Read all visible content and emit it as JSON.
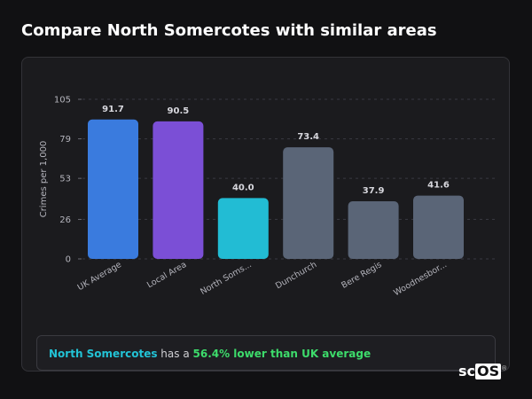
{
  "page": {
    "title": "Compare North Somercotes with similar areas"
  },
  "chart_data": {
    "type": "bar",
    "ylabel": "Crimes per 1,000",
    "xlabel": "",
    "ylim": [
      0,
      105
    ],
    "yticks": [
      0,
      26,
      53,
      79,
      105
    ],
    "grid": true,
    "categories": [
      "UK Average",
      "Local Area",
      "North Soms...",
      "Dunchurch",
      "Bere Regis",
      "Woodnesbor..."
    ],
    "values": [
      91.7,
      90.5,
      40.0,
      73.4,
      37.9,
      41.6
    ],
    "value_labels": [
      "91.7",
      "90.5",
      "40.0",
      "73.4",
      "37.9",
      "41.6"
    ],
    "bar_colors": [
      "#3a7bde",
      "#7b4fd6",
      "#22bcd4",
      "#5a6577",
      "#5a6577",
      "#5a6577"
    ]
  },
  "summary": {
    "area": "North Somercotes",
    "connector": " has a ",
    "difference": "56.4% lower than UK average"
  },
  "logo": {
    "prefix": "sc",
    "boxed": "OS",
    "mark": "®"
  }
}
